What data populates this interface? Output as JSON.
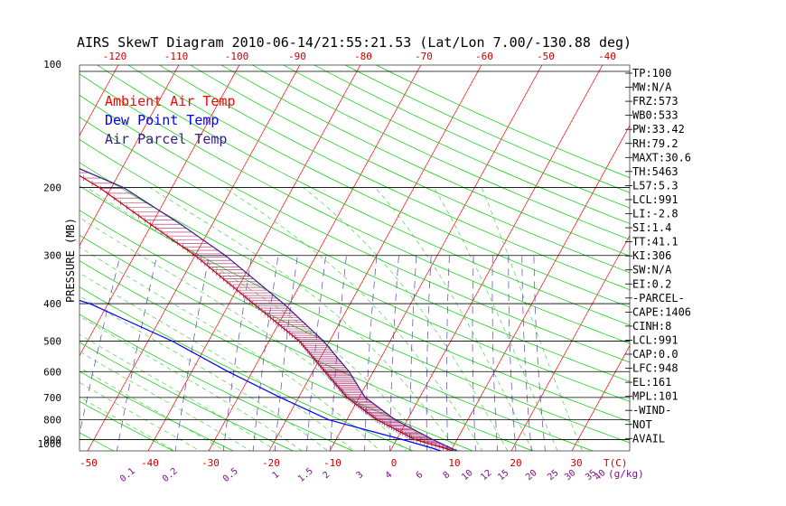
{
  "chart_data": {
    "type": "line",
    "title": "AIRS SkewT Diagram 2010-06-14/21:55:21.53 (Lat/Lon 7.00/-130.88 deg)",
    "ylabel": "PRESSURE (MB)",
    "xunit_label": "T(C)",
    "mixing_unit_label": "(g/kg)",
    "ylim": [
      1000,
      100
    ],
    "xlim": [
      -50,
      40
    ],
    "pressure_ticks": [
      100,
      200,
      300,
      400,
      500,
      600,
      700,
      800,
      900,
      1000
    ],
    "bottom_temp_ticks": [
      -50,
      -40,
      -30,
      -20,
      -10,
      0,
      10,
      20,
      30
    ],
    "top_temp_ticks": [
      -120,
      -110,
      -100,
      -90,
      -80,
      -70,
      -60,
      -50,
      -40
    ],
    "mixing_ratio_labels": [
      "0.1",
      "0.2",
      "0.5",
      "1",
      "1.5",
      "2",
      "3",
      "4",
      "6",
      "8",
      "10",
      "12",
      "15",
      "20",
      "25",
      "30",
      "35",
      "40"
    ],
    "legend": [
      {
        "name": "Ambient Air Temp",
        "color": "#ff0000"
      },
      {
        "name": "Dew Point Temp",
        "color": "#0000ff"
      },
      {
        "name": "Air Parcel Temp",
        "color": "#3a1a8c"
      }
    ],
    "series": [
      {
        "name": "Ambient Air Temp",
        "color": "#cc0000",
        "points": [
          [
            100,
            -80
          ],
          [
            150,
            -78
          ],
          [
            170,
            -72
          ],
          [
            200,
            -62
          ],
          [
            250,
            -50
          ],
          [
            300,
            -40
          ],
          [
            400,
            -26
          ],
          [
            500,
            -15
          ],
          [
            600,
            -8
          ],
          [
            700,
            -2
          ],
          [
            800,
            5
          ],
          [
            900,
            13
          ],
          [
            950,
            19
          ],
          [
            1000,
            24
          ]
        ]
      },
      {
        "name": "Dew Point Temp",
        "color": "#0000ff",
        "points": [
          [
            100,
            -90
          ],
          [
            150,
            -89
          ],
          [
            200,
            -89
          ],
          [
            250,
            -88
          ],
          [
            300,
            -84
          ],
          [
            350,
            -67
          ],
          [
            400,
            -53
          ],
          [
            500,
            -36
          ],
          [
            600,
            -24
          ],
          [
            700,
            -13
          ],
          [
            800,
            -3
          ],
          [
            900,
            11
          ],
          [
            950,
            17
          ],
          [
            1000,
            22
          ]
        ]
      },
      {
        "name": "Air Parcel Temp",
        "color": "#3a1a8c",
        "points": [
          [
            100,
            -90
          ],
          [
            150,
            -79
          ],
          [
            170,
            -71
          ],
          [
            200,
            -58
          ],
          [
            250,
            -45
          ],
          [
            300,
            -35
          ],
          [
            400,
            -21
          ],
          [
            500,
            -11
          ],
          [
            600,
            -4
          ],
          [
            700,
            1
          ],
          [
            800,
            8
          ],
          [
            900,
            16
          ],
          [
            950,
            20
          ],
          [
            1000,
            24
          ]
        ]
      }
    ]
  },
  "stats": [
    "TP:100",
    "MW:N/A",
    "FRZ:573",
    "WB0:533",
    "PW:33.42",
    "RH:79.2",
    "MAXT:30.6",
    "TH:5463",
    "L57:5.3",
    "LCL:991",
    "LI:-2.8",
    "SI:1.4",
    "TT:41.1",
    "KI:306",
    "SW:N/A",
    "EI:0.2",
    "-PARCEL-",
    "CAPE:1406",
    "CINH:8",
    "LCL:991",
    "CAP:0.0",
    "LFC:948",
    "EL:161",
    "MPL:101",
    "-WIND-",
    "NOT",
    "AVAIL"
  ],
  "colors": {
    "isotherm": "#ff0000",
    "dry_adiabat": "#00cc00",
    "moist_adiabat": "#33cc33",
    "mixing_ratio": "#5544aa",
    "isobar": "#000000",
    "tick_red": "#cc0000",
    "mixing_label": "#771188"
  }
}
